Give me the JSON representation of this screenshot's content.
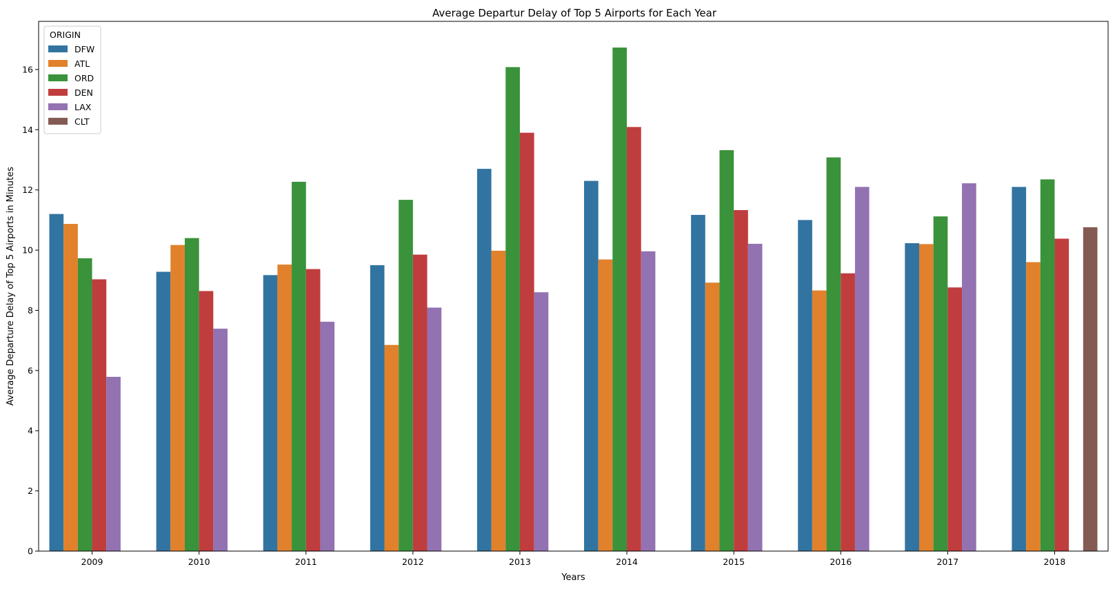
{
  "chart_data": {
    "type": "bar",
    "title": "Average Departur Delay of Top 5 Airports for Each Year",
    "xlabel": "Years",
    "ylabel": "Average Departure Delay of Top 5 Airports in Minutes",
    "categories": [
      "2009",
      "2010",
      "2011",
      "2012",
      "2013",
      "2014",
      "2015",
      "2016",
      "2017",
      "2018"
    ],
    "ylim": [
      0,
      17.6
    ],
    "yticks": [
      0,
      2,
      4,
      6,
      8,
      10,
      12,
      14,
      16
    ],
    "grid": false,
    "legend": {
      "title": "ORIGIN",
      "position": "top-left"
    },
    "series": [
      {
        "name": "DFW",
        "color": "#3274a1",
        "values": [
          11.2,
          9.28,
          9.17,
          9.5,
          12.7,
          12.3,
          11.17,
          11.0,
          10.23,
          12.1
        ]
      },
      {
        "name": "ATL",
        "color": "#e1812c",
        "values": [
          10.87,
          10.17,
          9.52,
          6.85,
          9.98,
          9.69,
          8.92,
          8.66,
          10.2,
          9.6
        ]
      },
      {
        "name": "ORD",
        "color": "#3a923a",
        "values": [
          9.73,
          10.4,
          12.27,
          11.67,
          16.08,
          16.73,
          13.32,
          13.08,
          11.12,
          12.35
        ]
      },
      {
        "name": "DEN",
        "color": "#c03d3e",
        "values": [
          9.03,
          8.64,
          9.37,
          9.85,
          13.9,
          14.09,
          11.33,
          9.23,
          8.76,
          10.38
        ]
      },
      {
        "name": "LAX",
        "color": "#9372b2",
        "values": [
          5.79,
          7.39,
          7.62,
          8.09,
          8.6,
          9.96,
          10.21,
          12.1,
          12.22,
          null
        ]
      },
      {
        "name": "CLT",
        "color": "#845b53",
        "values": [
          null,
          null,
          null,
          null,
          null,
          null,
          null,
          null,
          null,
          10.76
        ]
      }
    ]
  }
}
